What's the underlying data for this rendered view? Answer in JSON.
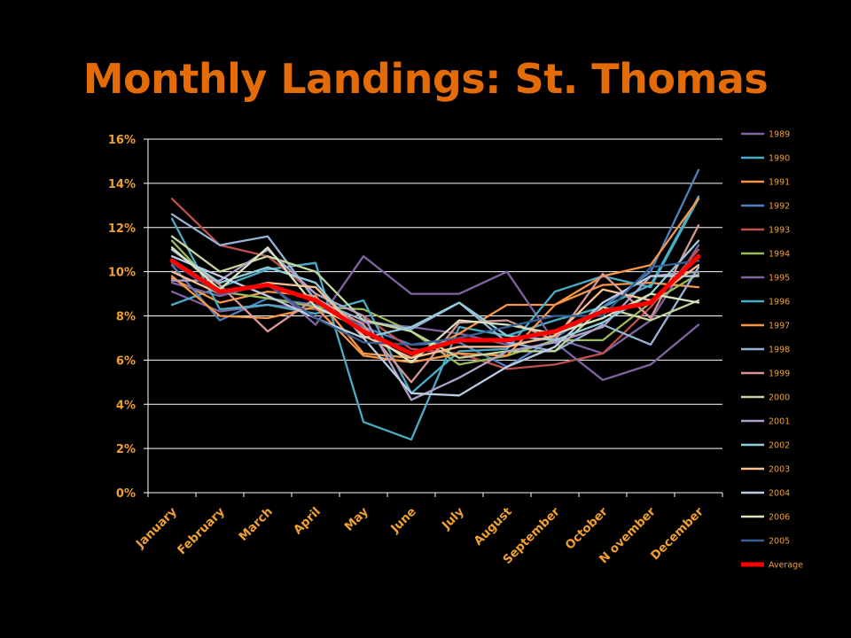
{
  "title": "Monthly Landings: St. Thomas",
  "colors": {
    "background": "#000000",
    "title": "#E36C09",
    "axis_text": "#F0A030",
    "legend_text": "#F0A030",
    "grid": "#FFFFFF"
  },
  "chart_data": {
    "type": "line",
    "title": "Monthly Landings: St. Thomas",
    "xlabel": "",
    "ylabel": "",
    "ylim": [
      0,
      0.16
    ],
    "y_ticks": [
      0,
      0.02,
      0.04,
      0.06,
      0.08,
      0.1,
      0.12,
      0.14,
      0.16
    ],
    "y_tick_labels": [
      "0%",
      "2%",
      "4%",
      "6%",
      "8%",
      "10%",
      "12%",
      "14%",
      "16%"
    ],
    "grid": true,
    "legend": "right",
    "categories": [
      "January",
      "February",
      "March",
      "April",
      "May",
      "June",
      "July",
      "August",
      "September",
      "October",
      "N ovember",
      "December"
    ],
    "series": [
      {
        "name": "1989",
        "color": "#8064A2",
        "values": [
          0.091,
          0.082,
          0.085,
          0.083,
          0.077,
          0.075,
          0.072,
          0.067,
          0.07,
          0.063,
          0.078,
          0.112
        ]
      },
      {
        "name": "1990",
        "color": "#4BACC6",
        "values": [
          0.085,
          0.093,
          0.101,
          0.104,
          0.032,
          0.024,
          0.075,
          0.071,
          0.078,
          0.084,
          0.094,
          0.134
        ]
      },
      {
        "name": "1991",
        "color": "#F79646",
        "values": [
          0.097,
          0.086,
          0.091,
          0.089,
          0.063,
          0.061,
          0.072,
          0.085,
          0.085,
          0.094,
          0.095,
          0.093
        ]
      },
      {
        "name": "1992",
        "color": "#4F81BD",
        "values": [
          0.103,
          0.078,
          0.088,
          0.085,
          0.075,
          0.067,
          0.068,
          0.057,
          0.07,
          0.084,
          0.1,
          0.146
        ]
      },
      {
        "name": "1993",
        "color": "#C0504D",
        "values": [
          0.133,
          0.112,
          0.107,
          0.09,
          0.08,
          0.065,
          0.063,
          0.056,
          0.058,
          0.063,
          0.084,
          0.11
        ]
      },
      {
        "name": "1994",
        "color": "#9BBB59",
        "values": [
          0.114,
          0.091,
          0.088,
          0.084,
          0.083,
          0.073,
          0.058,
          0.062,
          0.069,
          0.069,
          0.086,
          0.099
        ]
      },
      {
        "name": "1995",
        "color": "#8064A2",
        "values": [
          0.095,
          0.089,
          0.095,
          0.076,
          0.107,
          0.09,
          0.09,
          0.1,
          0.068,
          0.051,
          0.058,
          0.076
        ]
      },
      {
        "name": "1996",
        "color": "#4BACC6",
        "values": [
          0.124,
          0.083,
          0.085,
          0.081,
          0.087,
          0.045,
          0.064,
          0.065,
          0.091,
          0.098,
          0.093,
          0.133
        ]
      },
      {
        "name": "1997",
        "color": "#F79646",
        "values": [
          0.098,
          0.08,
          0.079,
          0.084,
          0.062,
          0.059,
          0.063,
          0.062,
          0.085,
          0.098,
          0.103,
          0.133
        ]
      },
      {
        "name": "1998",
        "color": "#95B3D7",
        "values": [
          0.126,
          0.112,
          0.116,
          0.087,
          0.078,
          0.074,
          0.086,
          0.068,
          0.064,
          0.076,
          0.067,
          0.102
        ]
      },
      {
        "name": "1999",
        "color": "#D99694",
        "values": [
          0.11,
          0.094,
          0.073,
          0.088,
          0.076,
          0.05,
          0.077,
          0.078,
          0.069,
          0.099,
          0.079,
          0.121
        ]
      },
      {
        "name": "2000",
        "color": "#C3D69B",
        "values": [
          0.116,
          0.1,
          0.107,
          0.1,
          0.078,
          0.073,
          0.061,
          0.064,
          0.064,
          0.084,
          0.078,
          0.087
        ]
      },
      {
        "name": "2001",
        "color": "#B2A1C7",
        "values": [
          0.096,
          0.096,
          0.11,
          0.09,
          0.08,
          0.042,
          0.052,
          0.064,
          0.068,
          0.075,
          0.098,
          0.1
        ]
      },
      {
        "name": "2002",
        "color": "#92CDDC",
        "values": [
          0.11,
          0.095,
          0.102,
          0.095,
          0.07,
          0.075,
          0.086,
          0.071,
          0.069,
          0.077,
          0.09,
          0.114
        ]
      },
      {
        "name": "2003",
        "color": "#FAC090",
        "values": [
          0.1,
          0.09,
          0.095,
          0.093,
          0.071,
          0.061,
          0.066,
          0.066,
          0.071,
          0.092,
          0.087,
          0.103
        ]
      },
      {
        "name": "2004",
        "color": "#B9CDE5",
        "values": [
          0.107,
          0.098,
          0.089,
          0.079,
          0.07,
          0.045,
          0.044,
          0.057,
          0.066,
          0.086,
          0.098,
          0.098
        ]
      },
      {
        "name": "2006",
        "color": "#D7E4BD",
        "values": [
          0.111,
          0.092,
          0.111,
          0.084,
          0.074,
          0.059,
          0.078,
          0.076,
          0.072,
          0.079,
          0.09,
          0.086
        ]
      },
      {
        "name": "2005",
        "color": "#376092",
        "values": [
          0.104,
          0.09,
          0.094,
          0.079,
          0.068,
          0.067,
          0.07,
          0.075,
          0.08,
          0.08,
          0.102,
          0.105
        ]
      },
      {
        "name": "Average",
        "color": "#FF0000",
        "values": [
          0.105,
          0.091,
          0.094,
          0.087,
          0.073,
          0.063,
          0.069,
          0.069,
          0.073,
          0.082,
          0.086,
          0.107
        ]
      }
    ]
  }
}
